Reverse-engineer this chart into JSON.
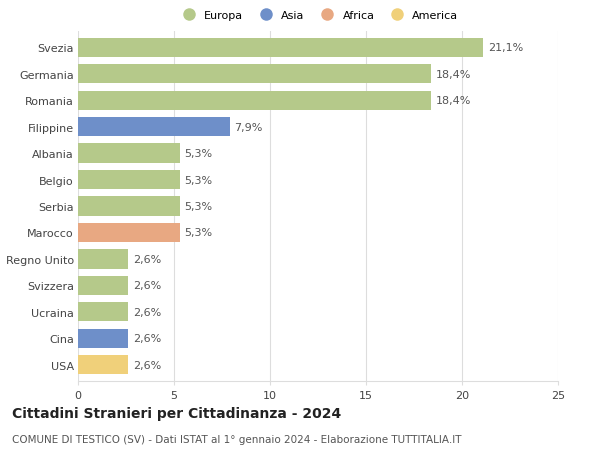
{
  "categories": [
    "Svezia",
    "Germania",
    "Romania",
    "Filippine",
    "Albania",
    "Belgio",
    "Serbia",
    "Marocco",
    "Regno Unito",
    "Svizzera",
    "Ucraina",
    "Cina",
    "USA"
  ],
  "values": [
    21.1,
    18.4,
    18.4,
    7.9,
    5.3,
    5.3,
    5.3,
    5.3,
    2.6,
    2.6,
    2.6,
    2.6,
    2.6
  ],
  "labels": [
    "21,1%",
    "18,4%",
    "18,4%",
    "7,9%",
    "5,3%",
    "5,3%",
    "5,3%",
    "5,3%",
    "2,6%",
    "2,6%",
    "2,6%",
    "2,6%",
    "2,6%"
  ],
  "bar_colors": [
    "#b5c98a",
    "#b5c98a",
    "#b5c98a",
    "#6e8fc9",
    "#b5c98a",
    "#b5c98a",
    "#b5c98a",
    "#e8a882",
    "#b5c98a",
    "#b5c98a",
    "#b5c98a",
    "#6e8fc9",
    "#f0d07a"
  ],
  "legend_labels": [
    "Europa",
    "Asia",
    "Africa",
    "America"
  ],
  "legend_colors": [
    "#b5c98a",
    "#6e8fc9",
    "#e8a882",
    "#f0d07a"
  ],
  "title": "Cittadini Stranieri per Cittadinanza - 2024",
  "subtitle": "COMUNE DI TESTICO (SV) - Dati ISTAT al 1° gennaio 2024 - Elaborazione TUTTITALIA.IT",
  "xlim": [
    0,
    25
  ],
  "xticks": [
    0,
    5,
    10,
    15,
    20,
    25
  ],
  "background_color": "#ffffff",
  "grid_color": "#dddddd",
  "bar_height": 0.72,
  "label_fontsize": 8.0,
  "tick_fontsize": 8.0,
  "title_fontsize": 10.0,
  "subtitle_fontsize": 7.5
}
